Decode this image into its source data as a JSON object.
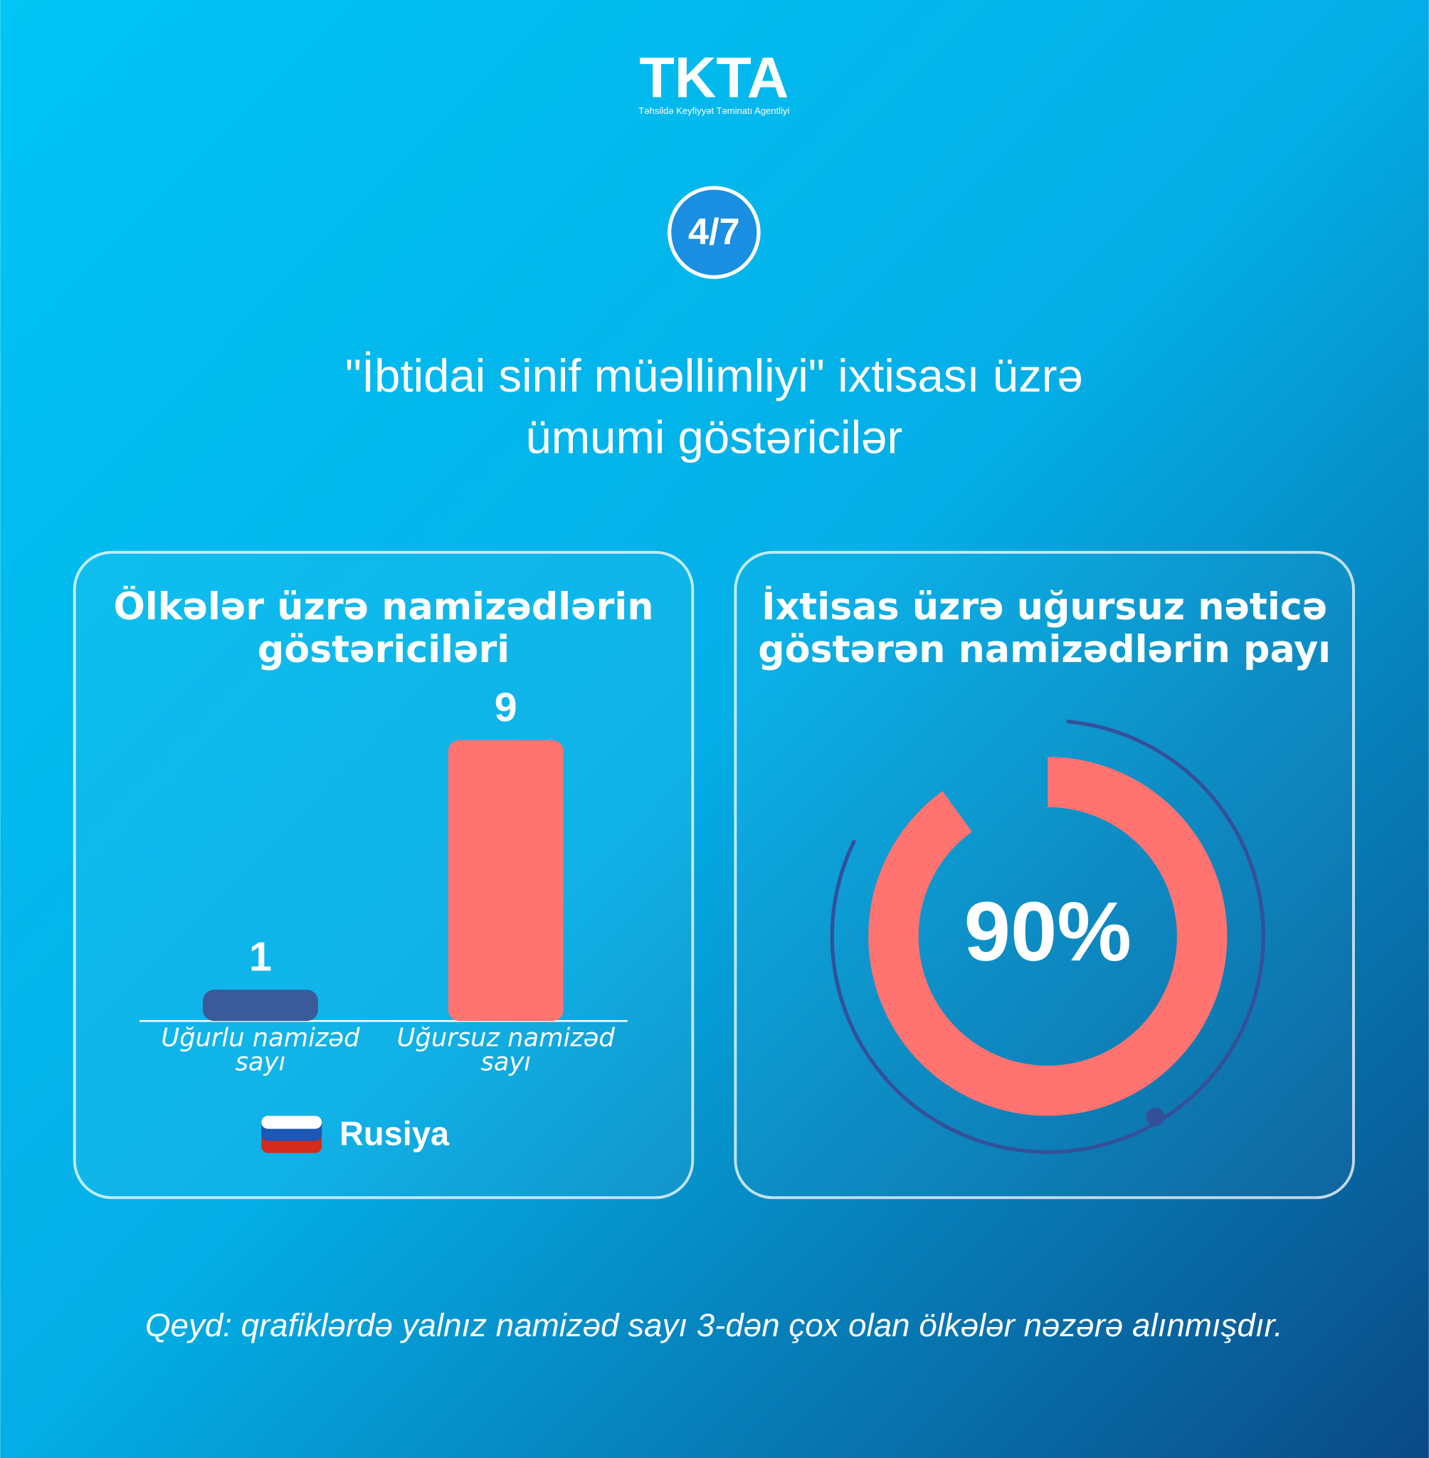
{
  "logo": {
    "title": "TKTA",
    "subtitle": "Təhsildə Keyfiyyət Təminatı Agentliyi"
  },
  "page_number": "4/7",
  "title_lines": [
    "\"İbtidai sinif müəllimliyi\" ixtisası üzrə",
    "ümumi göstəricilər"
  ],
  "chart_data": [
    {
      "type": "bar",
      "title": "Ölkələr üzrə namizədlərin göstəriciləri",
      "categories": [
        "Uğurlu namizəd sayı",
        "Uğursuz namizəd sayı"
      ],
      "series": [
        {
          "name": "Rusiya",
          "values": [
            1,
            9
          ]
        }
      ],
      "colors": [
        "#3b5a9a",
        "#ff7370"
      ]
    },
    {
      "type": "donut",
      "title": "İxtisas üzrə uğursuz nəticə göstərən namizədlərin payı",
      "values": [
        90
      ],
      "value_labels": [
        "90%"
      ],
      "color": "#ff7370"
    }
  ],
  "note": "Qeyd: qrafiklərdə yalnız namizəd sayı 3-dən çox olan ölkələr nəzərə alınmışdır."
}
